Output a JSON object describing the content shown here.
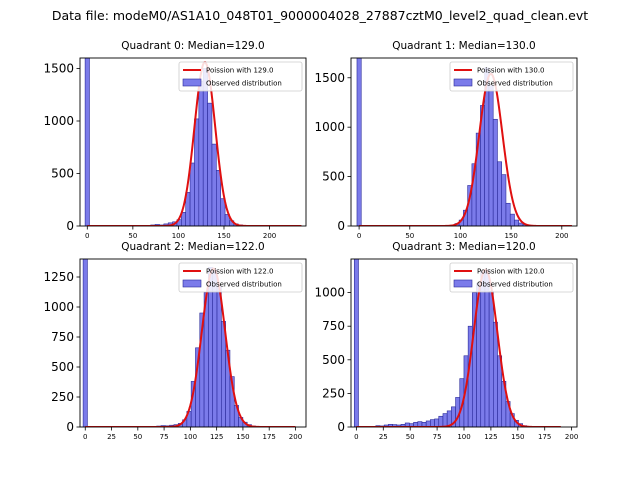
{
  "figure_title": "Data file: modeM0/AS1A10_048T01_9000004028_27887cztM0_level2_quad_clean.evt",
  "colors": {
    "bar_fill": "#7b7bea",
    "bar_edge": "#2a2a9a",
    "fit_line": "#e01010"
  },
  "chart_data": [
    {
      "type": "bar",
      "title": "Quadrant 0: Median=129.0",
      "median": 129.0,
      "xlim": [
        -8,
        240
      ],
      "ylim": [
        0,
        1600
      ],
      "xticks": [
        0,
        50,
        100,
        150,
        200
      ],
      "yticks": [
        0,
        500,
        1000,
        1500
      ],
      "legend": {
        "fit_label": "Poission with 129.0",
        "hist_label": "Observed distribution",
        "position": "upper right"
      },
      "bin_width": 4.8,
      "bins": [
        {
          "x": 0,
          "y": 1600
        },
        {
          "x": 72,
          "y": 10
        },
        {
          "x": 76.8,
          "y": 15
        },
        {
          "x": 81.6,
          "y": 10
        },
        {
          "x": 86.4,
          "y": 20
        },
        {
          "x": 91.2,
          "y": 30
        },
        {
          "x": 96,
          "y": 40
        },
        {
          "x": 100.8,
          "y": 60
        },
        {
          "x": 105.6,
          "y": 130
        },
        {
          "x": 110.4,
          "y": 320
        },
        {
          "x": 115.2,
          "y": 600
        },
        {
          "x": 120,
          "y": 1020
        },
        {
          "x": 124.8,
          "y": 1380
        },
        {
          "x": 129.6,
          "y": 1500
        },
        {
          "x": 134.4,
          "y": 1170
        },
        {
          "x": 139.2,
          "y": 780
        },
        {
          "x": 144,
          "y": 530
        },
        {
          "x": 148.8,
          "y": 260
        },
        {
          "x": 153.6,
          "y": 110
        },
        {
          "x": 158.4,
          "y": 50
        },
        {
          "x": 163.2,
          "y": 20
        },
        {
          "x": 168,
          "y": 10
        }
      ],
      "fit": {
        "mu": 129.0,
        "peak": 1560,
        "x_min": 0,
        "x_max": 235
      }
    },
    {
      "type": "bar",
      "title": "Quadrant 1: Median=130.0",
      "median": 130.0,
      "xlim": [
        -8,
        215
      ],
      "ylim": [
        0,
        1700
      ],
      "xticks": [
        0,
        50,
        100,
        150,
        200
      ],
      "yticks": [
        0,
        500,
        1000,
        1500
      ],
      "legend": {
        "fit_label": "Poission with 130.0",
        "hist_label": "Observed distribution",
        "position": "upper right"
      },
      "bin_width": 4.2,
      "bins": [
        {
          "x": 0,
          "y": 1700
        },
        {
          "x": 92.4,
          "y": 10
        },
        {
          "x": 96.6,
          "y": 25
        },
        {
          "x": 100.8,
          "y": 60
        },
        {
          "x": 105,
          "y": 160
        },
        {
          "x": 109.2,
          "y": 410
        },
        {
          "x": 113.4,
          "y": 630
        },
        {
          "x": 117.6,
          "y": 940
        },
        {
          "x": 121.8,
          "y": 1220
        },
        {
          "x": 126,
          "y": 1600
        },
        {
          "x": 130.2,
          "y": 1420
        },
        {
          "x": 134.4,
          "y": 1080
        },
        {
          "x": 138.6,
          "y": 650
        },
        {
          "x": 142.8,
          "y": 520
        },
        {
          "x": 147,
          "y": 230
        },
        {
          "x": 151.2,
          "y": 120
        },
        {
          "x": 155.4,
          "y": 60
        },
        {
          "x": 159.6,
          "y": 30
        },
        {
          "x": 163.8,
          "y": 15
        },
        {
          "x": 168,
          "y": 8
        }
      ],
      "fit": {
        "mu": 130.0,
        "peak": 1540,
        "x_min": 0,
        "x_max": 210
      }
    },
    {
      "type": "bar",
      "title": "Quadrant 2: Median=122.0",
      "median": 122.0,
      "xlim": [
        -5,
        210
      ],
      "ylim": [
        0,
        1400
      ],
      "xticks": [
        0,
        25,
        50,
        75,
        100,
        125,
        150,
        175,
        200
      ],
      "yticks": [
        0,
        250,
        500,
        750,
        1000,
        1250
      ],
      "legend": {
        "fit_label": "Poission with 122.0",
        "hist_label": "Observed distribution",
        "position": "upper right"
      },
      "bin_width": 4.1,
      "bins": [
        {
          "x": 0,
          "y": 1400
        },
        {
          "x": 70,
          "y": 8
        },
        {
          "x": 74.1,
          "y": 12
        },
        {
          "x": 78.2,
          "y": 10
        },
        {
          "x": 82.3,
          "y": 15
        },
        {
          "x": 86.4,
          "y": 20
        },
        {
          "x": 90.5,
          "y": 30
        },
        {
          "x": 94.6,
          "y": 60
        },
        {
          "x": 98.7,
          "y": 130
        },
        {
          "x": 102.8,
          "y": 380
        },
        {
          "x": 106.9,
          "y": 660
        },
        {
          "x": 111,
          "y": 950
        },
        {
          "x": 115.1,
          "y": 1120
        },
        {
          "x": 119.2,
          "y": 1330
        },
        {
          "x": 123.3,
          "y": 1310
        },
        {
          "x": 127.4,
          "y": 1170
        },
        {
          "x": 131.5,
          "y": 880
        },
        {
          "x": 135.6,
          "y": 640
        },
        {
          "x": 139.7,
          "y": 420
        },
        {
          "x": 143.8,
          "y": 180
        },
        {
          "x": 147.9,
          "y": 80
        },
        {
          "x": 152,
          "y": 40
        },
        {
          "x": 156.1,
          "y": 20
        },
        {
          "x": 160.2,
          "y": 8
        }
      ],
      "fit": {
        "mu": 122.0,
        "peak": 1320,
        "x_min": 0,
        "x_max": 200
      }
    },
    {
      "type": "bar",
      "title": "Quadrant 3: Median=120.0",
      "median": 120.0,
      "xlim": [
        -5,
        205
      ],
      "ylim": [
        0,
        1250
      ],
      "xticks": [
        0,
        25,
        50,
        75,
        100,
        125,
        150,
        175,
        200
      ],
      "yticks": [
        0,
        250,
        500,
        750,
        1000
      ],
      "legend": {
        "fit_label": "Poission with 120.0",
        "hist_label": "Observed distribution",
        "position": "upper right"
      },
      "bin_width": 3.9,
      "bins": [
        {
          "x": 0,
          "y": 1250
        },
        {
          "x": 20,
          "y": 10
        },
        {
          "x": 23.9,
          "y": 8
        },
        {
          "x": 27.8,
          "y": 15
        },
        {
          "x": 31.7,
          "y": 20
        },
        {
          "x": 35.6,
          "y": 18
        },
        {
          "x": 39.5,
          "y": 15
        },
        {
          "x": 43.4,
          "y": 20
        },
        {
          "x": 47.3,
          "y": 30
        },
        {
          "x": 51.2,
          "y": 25
        },
        {
          "x": 55.1,
          "y": 35
        },
        {
          "x": 59,
          "y": 40
        },
        {
          "x": 62.9,
          "y": 35
        },
        {
          "x": 66.8,
          "y": 45
        },
        {
          "x": 70.7,
          "y": 55
        },
        {
          "x": 74.6,
          "y": 60
        },
        {
          "x": 78.5,
          "y": 80
        },
        {
          "x": 82.4,
          "y": 100
        },
        {
          "x": 86.3,
          "y": 120
        },
        {
          "x": 90.2,
          "y": 150
        },
        {
          "x": 94.1,
          "y": 220
        },
        {
          "x": 98,
          "y": 360
        },
        {
          "x": 101.9,
          "y": 530
        },
        {
          "x": 105.8,
          "y": 750
        },
        {
          "x": 109.7,
          "y": 1000
        },
        {
          "x": 113.6,
          "y": 1070
        },
        {
          "x": 117.5,
          "y": 1160
        },
        {
          "x": 121.4,
          "y": 1170
        },
        {
          "x": 125.3,
          "y": 1010
        },
        {
          "x": 129.2,
          "y": 780
        },
        {
          "x": 133.1,
          "y": 530
        },
        {
          "x": 137,
          "y": 340
        },
        {
          "x": 140.9,
          "y": 190
        },
        {
          "x": 144.8,
          "y": 100
        },
        {
          "x": 148.7,
          "y": 50
        },
        {
          "x": 152.6,
          "y": 25
        },
        {
          "x": 156.5,
          "y": 10
        }
      ],
      "fit": {
        "mu": 120.0,
        "peak": 1170,
        "x_min": 0,
        "x_max": 190
      }
    }
  ]
}
